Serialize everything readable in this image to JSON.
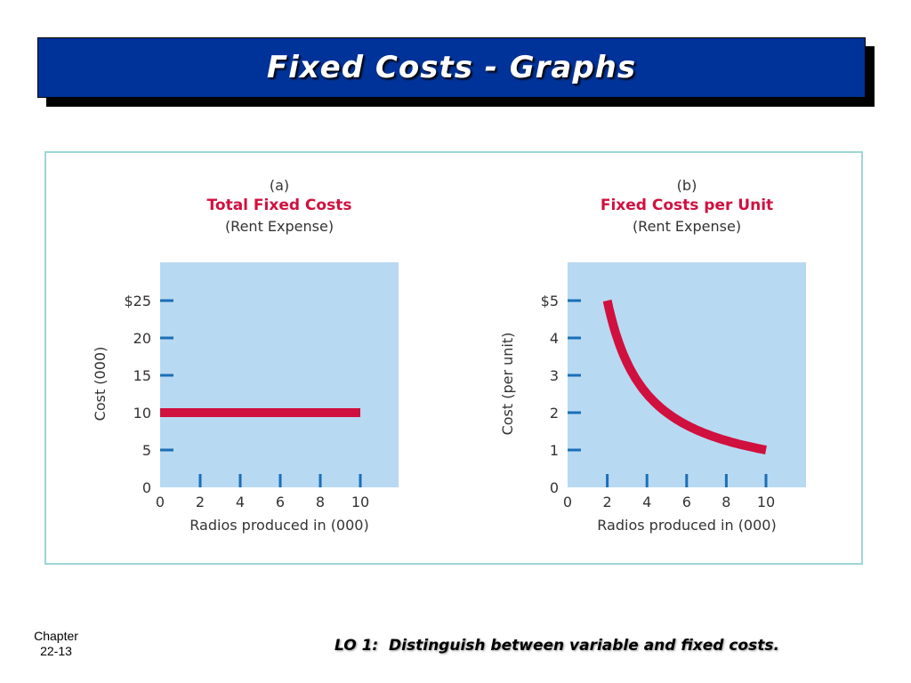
{
  "slide": {
    "title": "Fixed Costs - Graphs",
    "footer_chapter_line1": "Chapter",
    "footer_chapter_line2": "22-13",
    "footer_lo": "LO 1:  Distinguish between variable and fixed costs."
  },
  "colors": {
    "title_bg": "#003399",
    "plot_bg": "#b8d9f2",
    "series": "#d0103f",
    "tick": "#1a6fb8",
    "subtitle": "#d0103f",
    "frame": "#9ed6d6"
  },
  "chart_data": [
    {
      "type": "line",
      "panel_label": "(a)",
      "title": "Total Fixed Costs",
      "subtitle": "(Rent Expense)",
      "xlabel": "Radios produced in (000)",
      "ylabel": "Cost (000)",
      "xlim": [
        0,
        12
      ],
      "ylim": [
        0,
        30
      ],
      "x_ticks": [
        0,
        2,
        4,
        6,
        8,
        10
      ],
      "x_tick_labels": [
        "0",
        "2",
        "4",
        "6",
        "8",
        "10"
      ],
      "y_ticks": [
        0,
        5,
        10,
        15,
        20,
        25
      ],
      "y_tick_labels": [
        "0",
        "5",
        "10",
        "15",
        "20",
        "$25"
      ],
      "grid": false,
      "series": [
        {
          "name": "Total Fixed Costs",
          "x": [
            0,
            10
          ],
          "y": [
            10,
            10
          ]
        }
      ]
    },
    {
      "type": "line",
      "panel_label": "(b)",
      "title": "Fixed Costs per Unit",
      "subtitle": "(Rent Expense)",
      "xlabel": "Radios produced in (000)",
      "ylabel": "Cost (per unit)",
      "xlim": [
        0,
        12
      ],
      "ylim": [
        0,
        6
      ],
      "x_ticks": [
        0,
        2,
        4,
        6,
        8,
        10
      ],
      "x_tick_labels": [
        "0",
        "2",
        "4",
        "6",
        "8",
        "10"
      ],
      "y_ticks": [
        0,
        1,
        2,
        3,
        4,
        5
      ],
      "y_tick_labels": [
        "0",
        "1",
        "2",
        "3",
        "4",
        "$5"
      ],
      "grid": false,
      "series": [
        {
          "name": "Fixed Costs per Unit",
          "x": [
            2,
            3,
            4,
            5,
            6,
            7,
            8,
            9,
            10
          ],
          "y": [
            5,
            3.33,
            2.5,
            2,
            1.67,
            1.43,
            1.25,
            1.11,
            1
          ]
        }
      ]
    }
  ]
}
